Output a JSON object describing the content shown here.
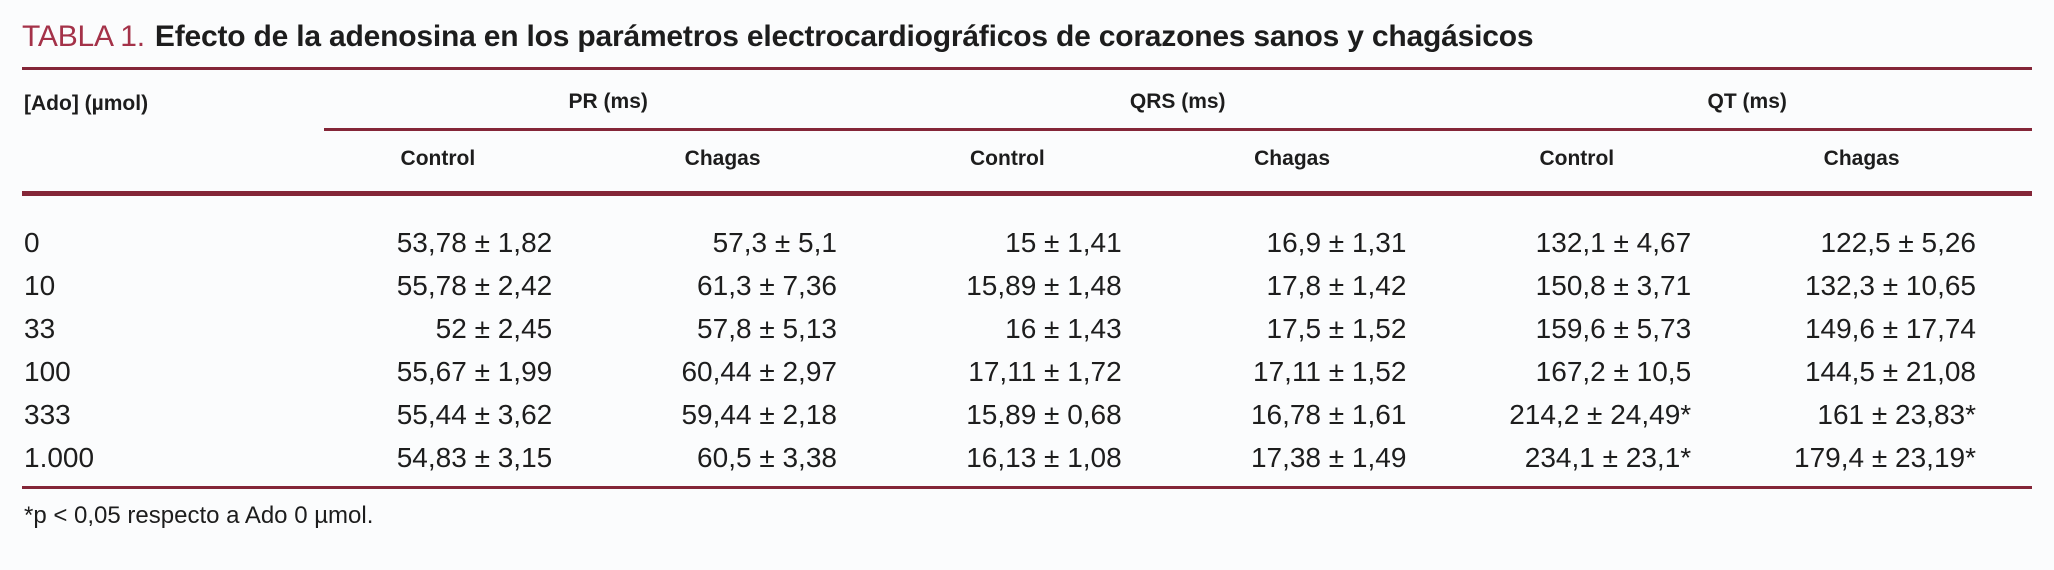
{
  "title": {
    "tag": "TABLA 1.",
    "text": "Efecto de la adenosina en los parámetros electrocardiográficos de corazones sanos y chagásicos"
  },
  "table": {
    "row_header": "[Ado] (µmol)",
    "groups": [
      {
        "label": "PR (ms)"
      },
      {
        "label": "QRS (ms)"
      },
      {
        "label": "QT (ms)"
      }
    ],
    "subheaders": [
      "Control",
      "Chagas",
      "Control",
      "Chagas",
      "Control",
      "Chagas"
    ],
    "rows": [
      {
        "ado": "0",
        "values": [
          "53,78 ± 1,82",
          "57,3 ± 5,1",
          "15 ± 1,41",
          "16,9 ± 1,31",
          "132,1 ± 4,67",
          "122,5 ± 5,26"
        ]
      },
      {
        "ado": "10",
        "values": [
          "55,78 ± 2,42",
          "61,3 ± 7,36",
          "15,89 ± 1,48",
          "17,8 ± 1,42",
          "150,8 ± 3,71",
          "132,3 ± 10,65"
        ]
      },
      {
        "ado": "33",
        "values": [
          "52 ± 2,45",
          "57,8 ± 5,13",
          "16 ± 1,43",
          "17,5 ± 1,52",
          "159,6 ± 5,73",
          "149,6 ± 17,74"
        ]
      },
      {
        "ado": "100",
        "values": [
          "55,67 ± 1,99",
          "60,44 ± 2,97",
          "17,11 ± 1,72",
          "17,11 ± 1,52",
          "167,2 ± 10,5",
          "144,5 ± 21,08"
        ]
      },
      {
        "ado": "333",
        "values": [
          "55,44 ± 3,62",
          "59,44 ± 2,18",
          "15,89 ± 0,68",
          "16,78 ± 1,61",
          "214,2 ± 24,49*",
          "161 ± 23,83*"
        ]
      },
      {
        "ado": "1.000",
        "values": [
          "54,83 ± 3,15",
          "60,5 ± 3,38",
          "16,13 ± 1,08",
          "17,38 ± 1,49",
          "234,1 ± 23,1*",
          "179,4 ± 23,19*"
        ]
      }
    ]
  },
  "footnote": "*p < 0,05 respecto a Ado 0 µmol.",
  "colors": {
    "accent_red": "#a43249",
    "rule_burgundy": "#842638",
    "text": "#1d1d1d",
    "background": "#fbfcfd"
  }
}
